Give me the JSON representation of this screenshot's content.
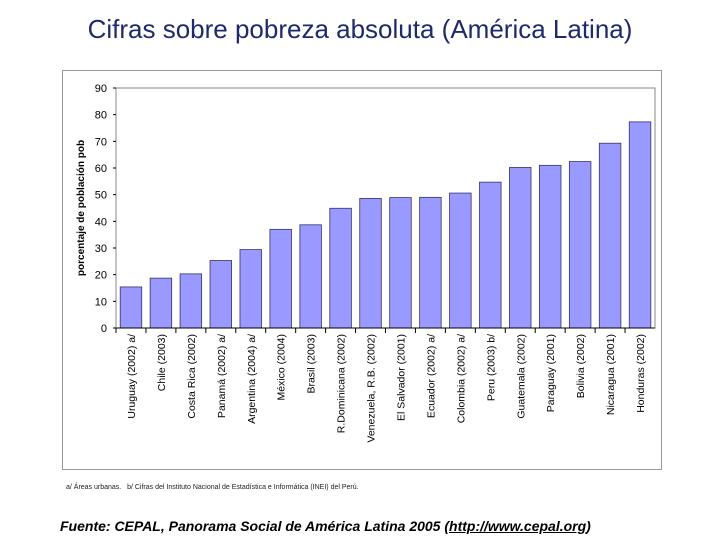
{
  "title": "Cifras sobre pobreza absoluta (América Latina)",
  "footnote": "a/ Áreas urbanas.   b/ Cifras del Instituto Nacional de Estadística e Informática (INEI) del Perú.",
  "source": {
    "prefix": "Fuente: CEPAL, Panorama Social de América Latina 2005 (",
    "link": "http://www.cepal.org",
    "suffix": ")"
  },
  "colors": {
    "bar_fill": "#9999ff",
    "bar_stroke": "#333366",
    "plot_bg": "#ffffff",
    "grid": "#000000",
    "title": "#1f2a6b"
  },
  "chart_data": {
    "type": "bar",
    "title": "",
    "xlabel": "",
    "ylabel": "porcentaje de población pob",
    "ylim": [
      0,
      90
    ],
    "yticks": [
      0,
      10,
      20,
      30,
      40,
      50,
      60,
      70,
      80,
      90
    ],
    "grid": false,
    "legend": "none",
    "categories": [
      "Uruguay (2002) a/",
      "Chile (2003)",
      "Costa Rica (2002)",
      "Panamá (2002) a/",
      "Argentina (2004) a/",
      "México (2004)",
      "Brasil (2003)",
      "R.Dominicana (2002)",
      "Venezuela, R.B. (2002)",
      "El Salvador (2001)",
      "Ecuador (2002) a/",
      "Colombia (2002) a/",
      "Peru (2003) b/",
      "Guatemala (2002)",
      "Paraguay (2001)",
      "Bolivia (2002)",
      "Nicaragua (2001)",
      "Honduras (2002)"
    ],
    "values": [
      15.4,
      18.7,
      20.3,
      25.3,
      29.4,
      37.0,
      38.7,
      44.9,
      48.6,
      48.9,
      49.0,
      50.6,
      54.7,
      60.2,
      61.0,
      62.4,
      69.3,
      77.3
    ]
  }
}
